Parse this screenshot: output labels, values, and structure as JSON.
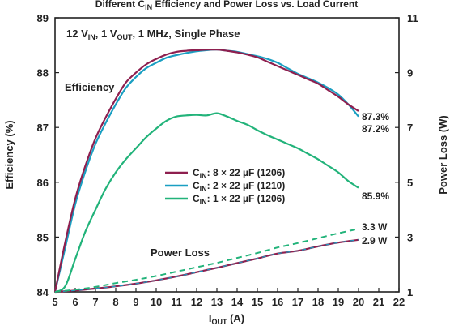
{
  "chart_data": {
    "type": "line",
    "title": {
      "pre": "Different C",
      "sub": "IN",
      "post": " Efficiency and Power Loss vs. Load Current"
    },
    "condition": {
      "p1": "12 V",
      "s1": "IN",
      "p2": ", 1 V",
      "s2": "OUT",
      "p3": ", 1 MHz, Single Phase"
    },
    "xlabel": {
      "main": "I",
      "sub": "OUT",
      "post": " (A)"
    },
    "ylabel_left": "Efficiency (%)",
    "ylabel_right": "Power Loss (W)",
    "xlim": [
      5,
      22
    ],
    "ylim_left": [
      84,
      89
    ],
    "ylim_right": [
      1,
      11
    ],
    "xticks": [
      "5",
      "6",
      "7",
      "8",
      "9",
      "10",
      "11",
      "12",
      "13",
      "14",
      "15",
      "16",
      "17",
      "18",
      "19",
      "20",
      "21",
      "22"
    ],
    "yticks_left": [
      "84",
      "85",
      "86",
      "87",
      "88",
      "89"
    ],
    "yticks_right": [
      "1",
      "3",
      "5",
      "7",
      "9",
      "11"
    ],
    "annotations": {
      "efficiency": "Efficiency",
      "power_loss": "Power Loss"
    },
    "efficiency_series": [
      {
        "name": {
          "pre": "C",
          "sub": "IN",
          "post": ": 8 × 22 µF (1206)"
        },
        "color": "#8e1f4f",
        "x": [
          5,
          5.5,
          6,
          6.5,
          7,
          7.5,
          8,
          8.5,
          9,
          9.5,
          10,
          10.5,
          11,
          11.5,
          12,
          12.5,
          13,
          13.5,
          14,
          14.5,
          15,
          15.5,
          16,
          16.5,
          17,
          17.5,
          18,
          18.5,
          19,
          19.5,
          20
        ],
        "y": [
          84.0,
          84.9,
          85.7,
          86.3,
          86.8,
          87.18,
          87.52,
          87.82,
          88.0,
          88.15,
          88.25,
          88.33,
          88.38,
          88.4,
          88.41,
          88.42,
          88.42,
          88.4,
          88.37,
          88.33,
          88.28,
          88.2,
          88.12,
          88.04,
          87.96,
          87.88,
          87.8,
          87.68,
          87.56,
          87.42,
          87.3
        ]
      },
      {
        "name": {
          "pre": "C",
          "sub": "IN",
          "post": ": 2 × 22 µF (1210)"
        },
        "color": "#1a9fc2",
        "x": [
          5,
          5.5,
          6,
          6.5,
          7,
          7.5,
          8,
          8.5,
          9,
          9.5,
          10,
          10.5,
          11,
          11.5,
          12,
          12.5,
          13,
          13.5,
          14,
          14.5,
          15,
          15.5,
          16,
          16.5,
          17,
          17.5,
          18,
          18.5,
          19,
          19.5,
          20
        ],
        "y": [
          84.0,
          84.8,
          85.6,
          86.2,
          86.7,
          87.08,
          87.42,
          87.72,
          87.92,
          88.08,
          88.18,
          88.27,
          88.32,
          88.36,
          88.39,
          88.41,
          88.42,
          88.4,
          88.38,
          88.34,
          88.3,
          88.25,
          88.18,
          88.08,
          87.98,
          87.9,
          87.82,
          87.72,
          87.6,
          87.42,
          87.2
        ]
      },
      {
        "name": {
          "pre": "C",
          "sub": "IN",
          "post": ": 1 × 22 µF (1206)"
        },
        "color": "#22b37a",
        "x": [
          5,
          5.5,
          6,
          6.5,
          7,
          7.5,
          8,
          8.5,
          9,
          9.5,
          10,
          10.5,
          11,
          11.5,
          12,
          12.5,
          13,
          13.5,
          14,
          14.5,
          15,
          15.5,
          16,
          16.5,
          17,
          17.5,
          18,
          18.5,
          19,
          19.5,
          20
        ],
        "y": [
          84.0,
          84.1,
          84.6,
          85.1,
          85.5,
          85.88,
          86.18,
          86.42,
          86.62,
          86.82,
          86.98,
          87.12,
          87.2,
          87.22,
          87.23,
          87.22,
          87.26,
          87.2,
          87.12,
          87.05,
          86.95,
          86.86,
          86.78,
          86.7,
          86.62,
          86.52,
          86.42,
          86.3,
          86.18,
          86.02,
          85.9
        ]
      }
    ],
    "power_loss_series": [
      {
        "style": "solid",
        "color": "#8e1f4f",
        "overlay_color": "#1a9fc2",
        "x": [
          5,
          6,
          7,
          8,
          9,
          10,
          11,
          12,
          13,
          14,
          15,
          16,
          17,
          18,
          19,
          20
        ],
        "y": [
          1.0,
          1.05,
          1.12,
          1.2,
          1.3,
          1.42,
          1.56,
          1.72,
          1.88,
          2.05,
          2.22,
          2.4,
          2.5,
          2.66,
          2.8,
          2.9
        ]
      },
      {
        "style": "dashed",
        "color": "#22b37a",
        "x": [
          5,
          6,
          7,
          8,
          9,
          10,
          11,
          12,
          13,
          14,
          15,
          16,
          17,
          18,
          19,
          20
        ],
        "y": [
          1.0,
          1.08,
          1.18,
          1.32,
          1.44,
          1.58,
          1.74,
          1.9,
          2.06,
          2.24,
          2.42,
          2.62,
          2.78,
          2.96,
          3.14,
          3.3
        ]
      }
    ],
    "end_labels": {
      "eff_8x": "87.3%",
      "eff_2x": "87.2%",
      "eff_1x": "85.9%",
      "pl_1x": "3.3 W",
      "pl_8x": "2.9 W"
    },
    "grid": false,
    "legend_placement": "center"
  }
}
